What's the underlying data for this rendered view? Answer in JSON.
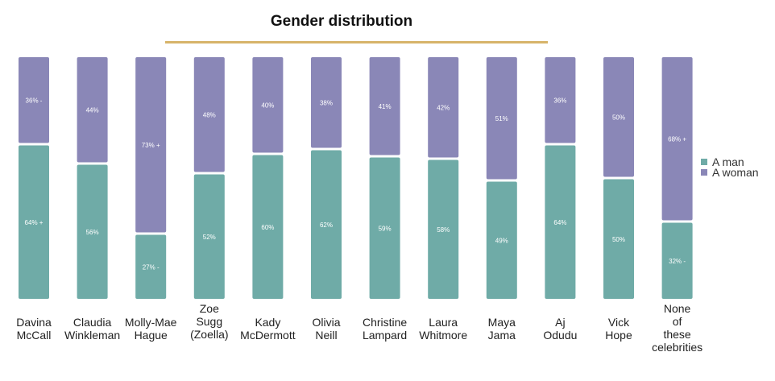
{
  "title": "Gender distribution",
  "colors": {
    "man": "#6faba7",
    "woman": "#8a87b7",
    "title_rule": "#d7b46a",
    "bar_label": "#ffffff",
    "category_label": "#222222"
  },
  "legend": {
    "man": "A man",
    "woman": "A woman"
  },
  "chart_data": {
    "type": "bar",
    "stacked": true,
    "title": "Gender distribution",
    "ylim": [
      0,
      100
    ],
    "legend_position": "right",
    "grid": false,
    "categories": [
      "Davina McCall",
      "Claudia Winkleman",
      "Molly-Mae Hague",
      "Zoe Sugg (Zoella)",
      "Kady McDermott",
      "Olivia Neill",
      "Christine Lampard",
      "Laura Whitmore",
      "Maya Jama",
      "Aj Odudu",
      "Vick Hope",
      "None of these celebrities"
    ],
    "category_lines": [
      [
        "Davina",
        "McCall"
      ],
      [
        "Claudia",
        "Winkleman"
      ],
      [
        "Molly-Mae",
        "Hague"
      ],
      [
        "Zoe",
        "Sugg",
        "(Zoella)"
      ],
      [
        "Kady",
        "McDermott"
      ],
      [
        "Olivia",
        "Neill"
      ],
      [
        "Christine",
        "Lampard"
      ],
      [
        "Laura",
        "Whitmore"
      ],
      [
        "Maya",
        "Jama"
      ],
      [
        "Aj",
        "Odudu"
      ],
      [
        "Vick",
        "Hope"
      ],
      [
        "None",
        "of",
        "these",
        "celebrities"
      ]
    ],
    "series": [
      {
        "name": "A man",
        "values": [
          64,
          56,
          27,
          52,
          60,
          62,
          59,
          58,
          49,
          64,
          50,
          32
        ],
        "labels": [
          "64% +",
          "56%",
          "27% -",
          "52%",
          "60%",
          "62%",
          "59%",
          "58%",
          "49%",
          "64%",
          "50%",
          "32% -"
        ]
      },
      {
        "name": "A woman",
        "values": [
          36,
          44,
          73,
          48,
          40,
          38,
          41,
          42,
          51,
          36,
          50,
          68
        ],
        "labels": [
          "36% -",
          "44%",
          "73% +",
          "48%",
          "40%",
          "38%",
          "41%",
          "42%",
          "51%",
          "36%",
          "50%",
          "68% +"
        ]
      }
    ]
  }
}
